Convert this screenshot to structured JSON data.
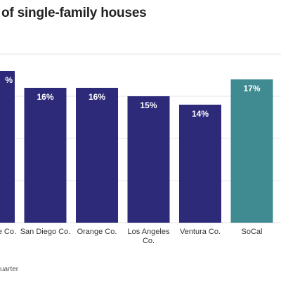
{
  "chart_data": {
    "type": "bar",
    "title": "of single-family houses",
    "categories": [
      "e Co.",
      "San Diego Co.",
      "Orange Co.",
      "Los Angeles Co.",
      "Ventura Co.",
      "SoCal"
    ],
    "values": [
      18,
      16,
      16,
      15,
      14,
      17
    ],
    "value_labels": [
      "%",
      "16%",
      "16%",
      "15%",
      "14%",
      "17%"
    ],
    "ylim": [
      0,
      20
    ],
    "grid": true,
    "colors": {
      "default": "#2e2a7a",
      "highlight": "#3f8b91",
      "grid": "#e5e5e5"
    },
    "highlight_index": 5,
    "footnote": "uarter"
  }
}
